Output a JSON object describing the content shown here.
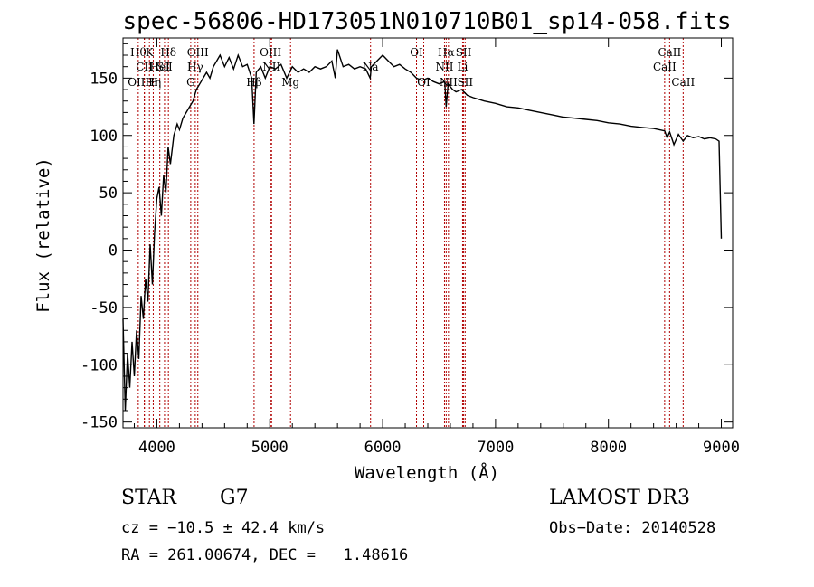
{
  "chart_data": {
    "type": "line",
    "title": "spec-56806-HD173051N010710B01_sp14-058.fits",
    "xlabel": "Wavelength (Å)",
    "ylabel": "Flux (relative)",
    "xlim": [
      3700,
      9100
    ],
    "ylim": [
      -155,
      185
    ],
    "xticks": [
      4000,
      5000,
      6000,
      7000,
      8000,
      9000
    ],
    "yticks": [
      -150,
      -100,
      -50,
      0,
      50,
      100,
      150
    ],
    "series": [
      {
        "x": [
          3700,
          3720,
          3740,
          3760,
          3780,
          3800,
          3820,
          3840,
          3860,
          3880,
          3900,
          3920,
          3940,
          3960,
          3980,
          4000,
          4020,
          4040,
          4060,
          4080,
          4100,
          4120,
          4150,
          4180,
          4200,
          4230,
          4260,
          4290,
          4320,
          4350,
          4380,
          4410,
          4440,
          4470,
          4500,
          4530,
          4560,
          4600,
          4640,
          4680,
          4720,
          4760,
          4800,
          4840,
          4860,
          4880,
          4920,
          4960,
          5000,
          5050,
          5100,
          5150,
          5200,
          5250,
          5300,
          5350,
          5400,
          5450,
          5500,
          5550,
          5580,
          5600,
          5650,
          5700,
          5750,
          5800,
          5850,
          5890,
          5900,
          5950,
          6000,
          6050,
          6100,
          6150,
          6200,
          6250,
          6300,
          6350,
          6400,
          6450,
          6500,
          6550,
          6563,
          6580,
          6620,
          6650,
          6700,
          6750,
          6800,
          6900,
          7000,
          7100,
          7200,
          7300,
          7400,
          7500,
          7600,
          7700,
          7800,
          7900,
          8000,
          8100,
          8200,
          8300,
          8400,
          8498,
          8520,
          8542,
          8580,
          8620,
          8662,
          8700,
          8750,
          8800,
          8850,
          8900,
          8950,
          8980,
          9000
        ],
        "y": [
          -60,
          -140,
          -90,
          -120,
          -80,
          -110,
          -70,
          -95,
          -40,
          -60,
          -25,
          -45,
          5,
          -30,
          15,
          45,
          55,
          30,
          65,
          50,
          90,
          75,
          100,
          110,
          105,
          115,
          120,
          125,
          130,
          140,
          145,
          150,
          155,
          150,
          160,
          165,
          170,
          160,
          168,
          158,
          170,
          160,
          162,
          150,
          110,
          155,
          160,
          150,
          160,
          158,
          162,
          150,
          160,
          155,
          158,
          155,
          160,
          158,
          160,
          165,
          150,
          175,
          160,
          162,
          158,
          160,
          158,
          150,
          160,
          165,
          170,
          165,
          160,
          162,
          158,
          155,
          150,
          148,
          150,
          147,
          145,
          147,
          125,
          145,
          140,
          138,
          140,
          135,
          133,
          130,
          128,
          125,
          124,
          122,
          120,
          118,
          116,
          115,
          114,
          113,
          111,
          110,
          108,
          107,
          106,
          104,
          98,
          103,
          92,
          101,
          95,
          100,
          98,
          99,
          97,
          98,
          97,
          95,
          10
        ]
      }
    ],
    "line_labels": [
      {
        "x": 3835,
        "row": 1,
        "text": "Hθ"
      },
      {
        "x": 3889,
        "row": 2,
        "text": "CII"
      },
      {
        "x": 3890,
        "row": 3,
        "text": "OIIHη"
      },
      {
        "x": 3934,
        "row": 1,
        "text": "K"
      },
      {
        "x": 3968,
        "row": 3,
        "text": "H"
      },
      {
        "x": 4026,
        "row": 2,
        "text": "HeI"
      },
      {
        "x": 4068,
        "row": 2,
        "text": "SII"
      },
      {
        "x": 4102,
        "row": 1,
        "text": "Hδ"
      },
      {
        "x": 4300,
        "row": 3,
        "text": "G"
      },
      {
        "x": 4340,
        "row": 2,
        "text": "Hγ"
      },
      {
        "x": 4363,
        "row": 1,
        "text": "OIII"
      },
      {
        "x": 4861,
        "row": 3,
        "text": "Hβ"
      },
      {
        "x": 5007,
        "row": 1,
        "text": "OIII"
      },
      {
        "x": 5016,
        "row": 2,
        "text": "NII"
      },
      {
        "x": 5184,
        "row": 3,
        "text": "Mg"
      },
      {
        "x": 5893,
        "row": 2,
        "text": "Na"
      },
      {
        "x": 6300,
        "row": 1,
        "text": "OI"
      },
      {
        "x": 6364,
        "row": 3,
        "text": "OI"
      },
      {
        "x": 6548,
        "row": 2,
        "text": "NII"
      },
      {
        "x": 6563,
        "row": 1,
        "text": "Hα"
      },
      {
        "x": 6583,
        "row": 3,
        "text": "NII"
      },
      {
        "x": 6708,
        "row": 2,
        "text": "Li"
      },
      {
        "x": 6717,
        "row": 1,
        "text": "SII"
      },
      {
        "x": 6731,
        "row": 3,
        "text": "SII"
      },
      {
        "x": 8498,
        "row": 2,
        "text": "CaII"
      },
      {
        "x": 8542,
        "row": 1,
        "text": "CaII"
      },
      {
        "x": 8662,
        "row": 3,
        "text": "CaII"
      }
    ]
  },
  "info": {
    "object_class": "STAR",
    "subclass": "G7",
    "survey": "LAMOST DR3",
    "cz": "cz = −10.5 ± 42.4 km/s",
    "obs_date": "Obs−Date: 20140528",
    "radec": "RA = 261.00674, DEC =   1.48616"
  },
  "colors": {
    "spectrum": "#000000",
    "lines": "#b00000"
  }
}
